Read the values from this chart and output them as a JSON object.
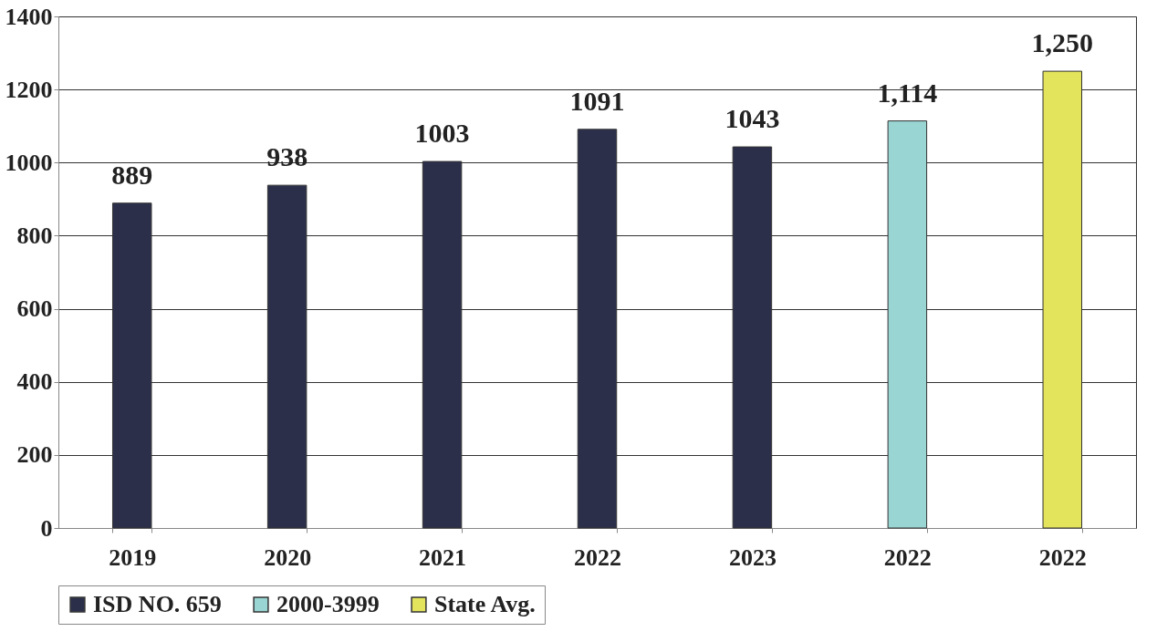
{
  "chart_data": {
    "type": "bar",
    "categories": [
      "2019",
      "2020",
      "2021",
      "2022",
      "2023",
      "2022",
      "2022"
    ],
    "series": [
      {
        "name": "ISD NO. 659",
        "color": "#2b2f4a",
        "values": [
          889,
          938,
          1003,
          1091,
          1043,
          null,
          null
        ],
        "value_labels": [
          "889",
          "938",
          "1003",
          "1091",
          "1043",
          null,
          null
        ]
      },
      {
        "name": "2000-3999",
        "color": "#99d5d3",
        "values": [
          null,
          null,
          null,
          null,
          null,
          1114,
          null
        ],
        "value_labels": [
          null,
          null,
          null,
          null,
          null,
          "1,114",
          null
        ]
      },
      {
        "name": "State Avg.",
        "color": "#e3e35c",
        "values": [
          null,
          null,
          null,
          null,
          null,
          null,
          1250
        ],
        "value_labels": [
          null,
          null,
          null,
          null,
          null,
          null,
          "1,250"
        ]
      }
    ],
    "ylim": [
      0,
      1400
    ],
    "yticks": [
      0,
      200,
      400,
      600,
      800,
      1000,
      1200,
      1400
    ],
    "grid": "y",
    "legend": "bottom"
  }
}
